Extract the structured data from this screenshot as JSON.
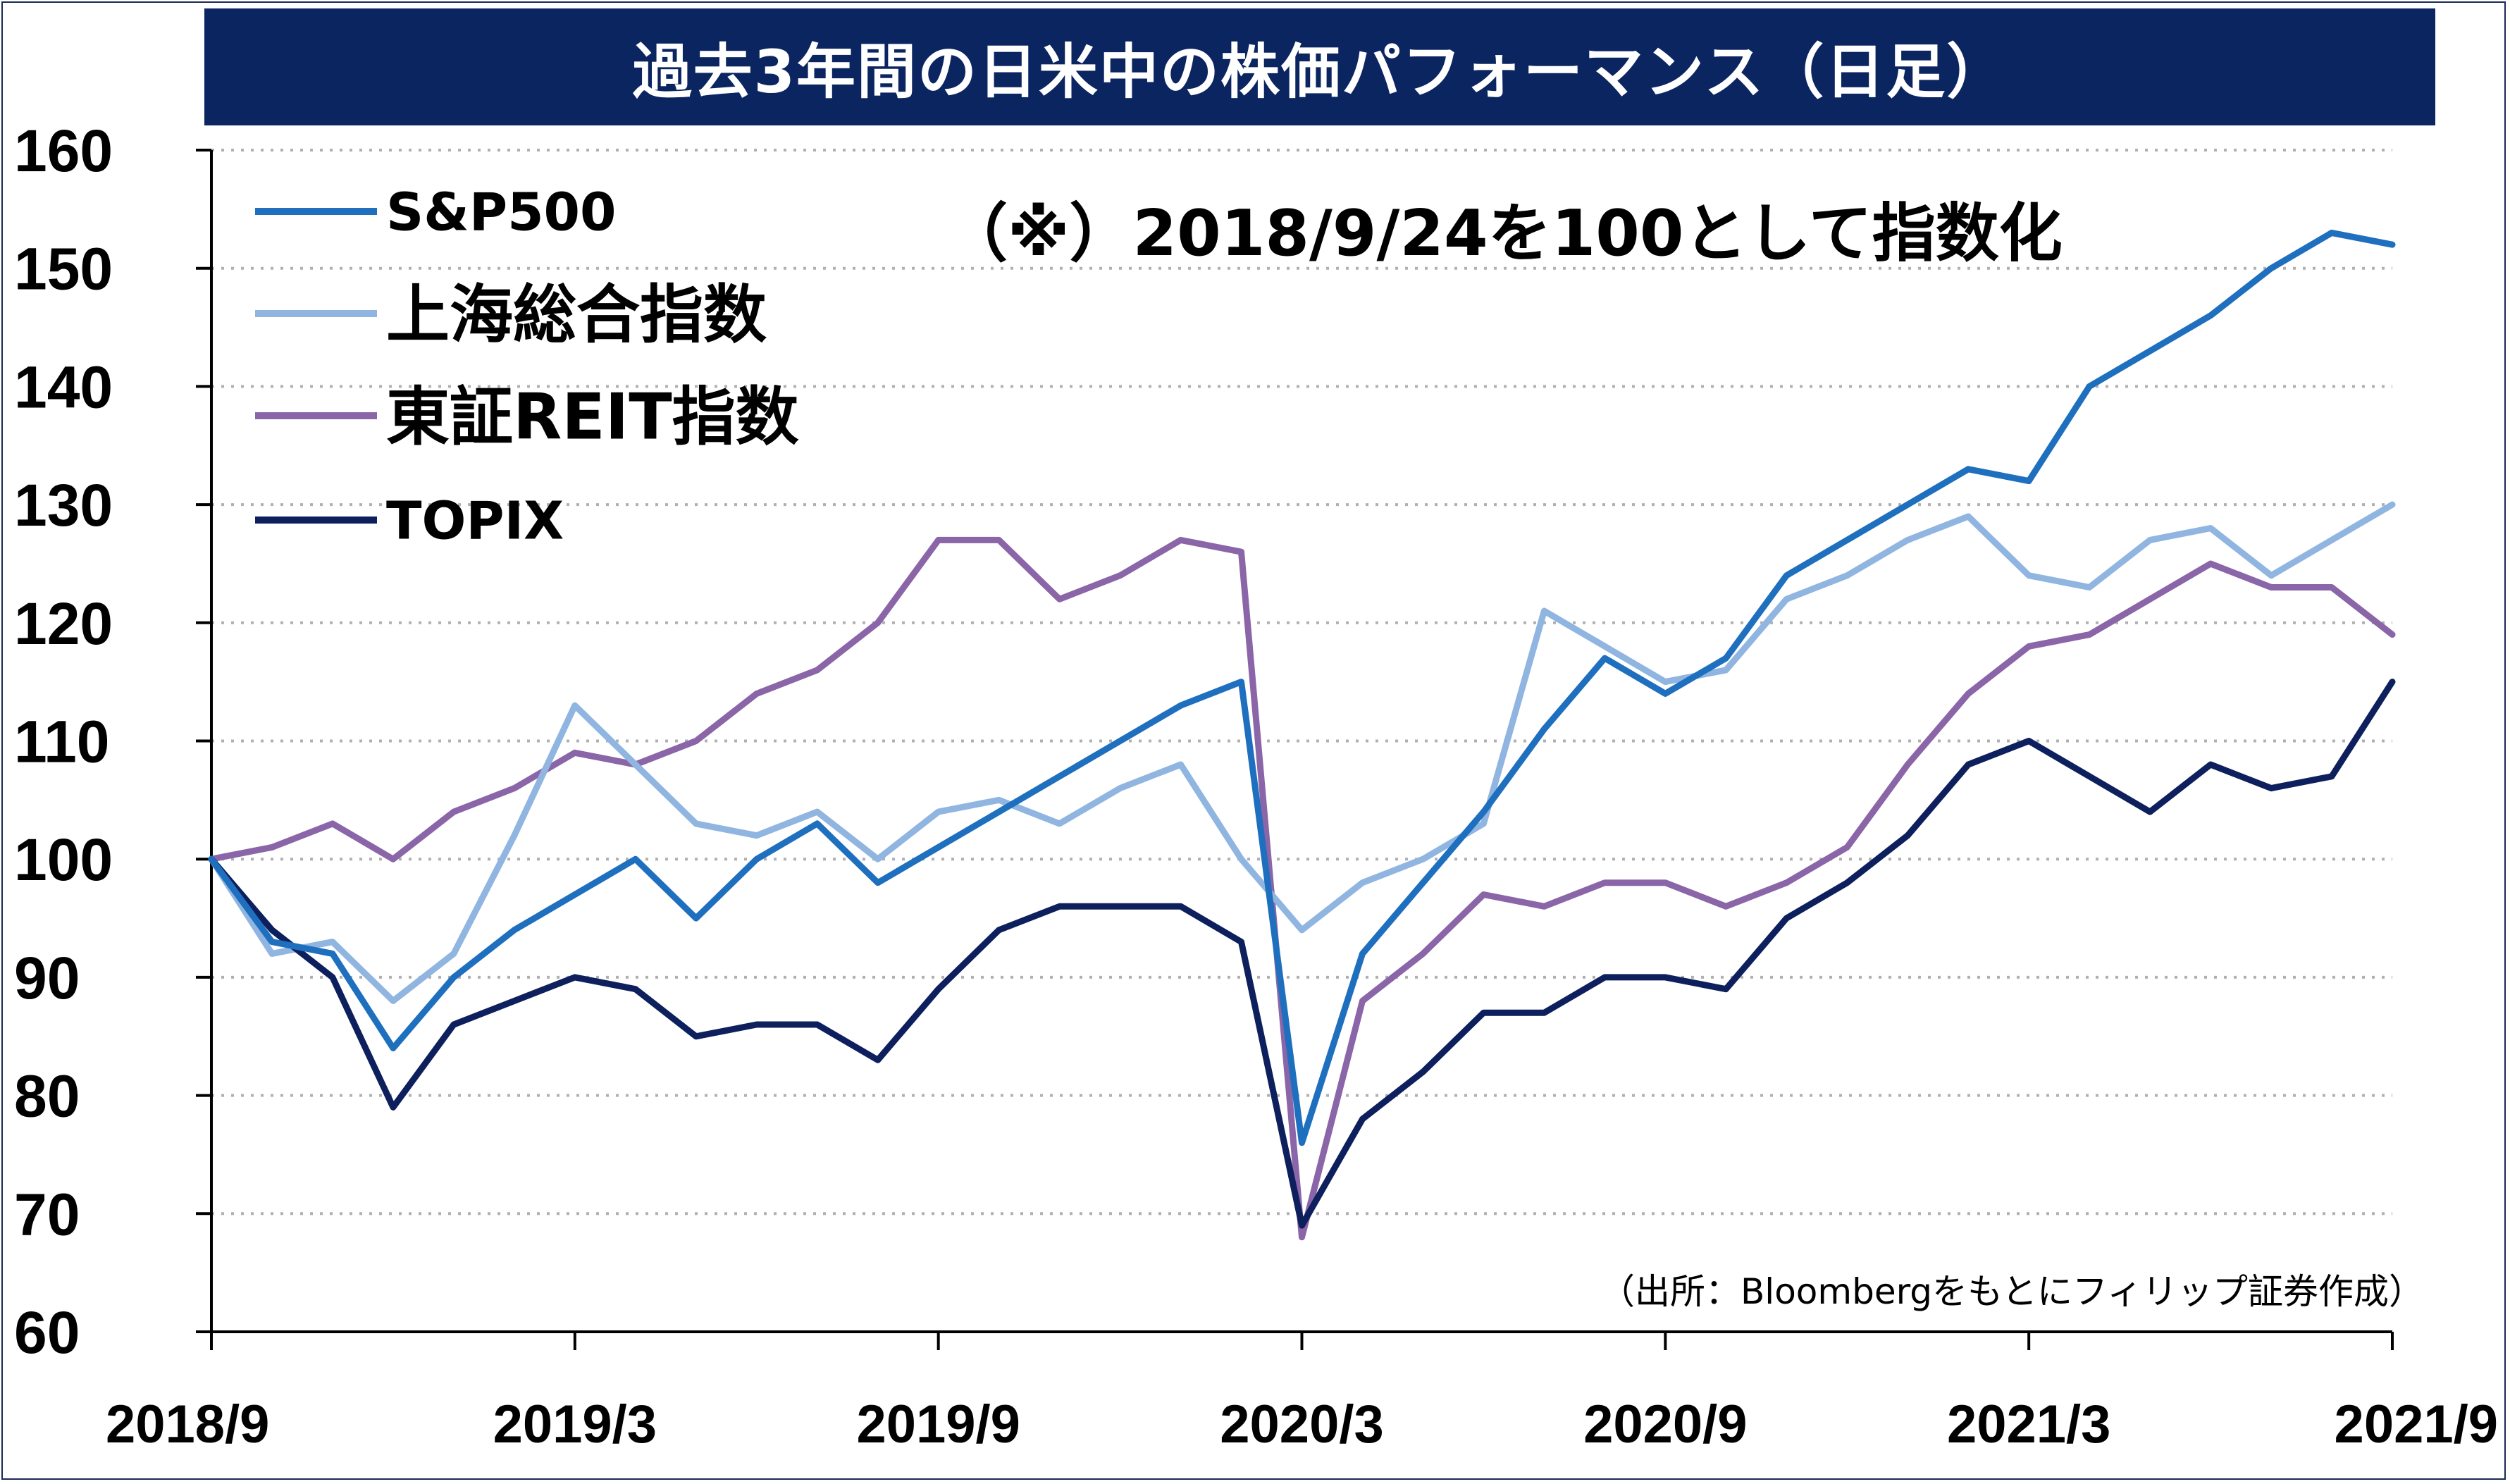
{
  "chart_data": {
    "type": "line",
    "title": "過去3年間の日米中の株価パフォーマンス（日足）",
    "annotation": "（※）2018/9/24を100として指数化",
    "source": "（出所：Bloombergをもとにフィリップ証券作成）",
    "ylim": [
      60,
      160
    ],
    "yticks": [
      160,
      150,
      140,
      130,
      120,
      110,
      100,
      90,
      80,
      70,
      60
    ],
    "xticks": [
      "2018/9",
      "2019/3",
      "2019/9",
      "2020/3",
      "2020/9",
      "2021/3",
      "2021/9"
    ],
    "grid": "horizontal dotted",
    "legend_position": "top-left",
    "x": [
      "2018/9",
      "2018/10",
      "2018/11",
      "2018/12",
      "2019/1",
      "2019/2",
      "2019/3",
      "2019/4",
      "2019/5",
      "2019/6",
      "2019/7",
      "2019/8",
      "2019/9",
      "2019/10",
      "2019/11",
      "2019/12",
      "2020/1",
      "2020/2",
      "2020/3",
      "2020/4",
      "2020/5",
      "2020/6",
      "2020/7",
      "2020/8",
      "2020/9",
      "2020/10",
      "2020/11",
      "2020/12",
      "2021/1",
      "2021/2",
      "2021/3",
      "2021/4",
      "2021/5",
      "2021/6",
      "2021/7",
      "2021/8",
      "2021/9"
    ],
    "series": [
      {
        "name": "S&P500",
        "color": "#1f6fbf",
        "values": [
          100,
          93,
          92,
          84,
          90,
          94,
          97,
          100,
          95,
          100,
          103,
          98,
          101,
          104,
          107,
          110,
          113,
          115,
          76,
          92,
          98,
          104,
          111,
          117,
          114,
          117,
          124,
          127,
          130,
          133,
          132,
          140,
          143,
          146,
          150,
          153,
          152
        ]
      },
      {
        "name": "上海総合指数",
        "color": "#8fb5e0",
        "values": [
          100,
          92,
          93,
          88,
          92,
          102,
          113,
          108,
          103,
          102,
          104,
          100,
          104,
          105,
          103,
          106,
          108,
          100,
          94,
          98,
          100,
          103,
          121,
          118,
          115,
          116,
          122,
          124,
          127,
          129,
          124,
          123,
          127,
          128,
          124,
          127,
          130
        ]
      },
      {
        "name": "東証REIT指数",
        "color": "#8a65a8",
        "values": [
          100,
          101,
          103,
          100,
          104,
          106,
          109,
          108,
          110,
          114,
          116,
          120,
          127,
          127,
          122,
          124,
          127,
          126,
          68,
          88,
          92,
          97,
          96,
          98,
          98,
          96,
          98,
          101,
          108,
          114,
          118,
          119,
          122,
          125,
          123,
          123,
          119
        ]
      },
      {
        "name": "TOPIX",
        "color": "#0d1f5c",
        "values": [
          100,
          94,
          90,
          79,
          86,
          88,
          90,
          89,
          85,
          86,
          86,
          83,
          89,
          94,
          96,
          96,
          96,
          93,
          69,
          78,
          82,
          87,
          87,
          90,
          90,
          89,
          95,
          98,
          102,
          108,
          110,
          107,
          104,
          108,
          106,
          107,
          115
        ]
      }
    ]
  },
  "legend": [
    {
      "label": "S&P500",
      "color": "#1f6fbf"
    },
    {
      "label": "上海総合指数",
      "color": "#8fb5e0"
    },
    {
      "label": "東証REIT指数",
      "color": "#8a65a8"
    },
    {
      "label": "TOPIX",
      "color": "#0d1f5c"
    }
  ],
  "colors": {
    "title_bg": "#0b2561",
    "grid": "#b0b0b0",
    "axis": "#000000"
  }
}
